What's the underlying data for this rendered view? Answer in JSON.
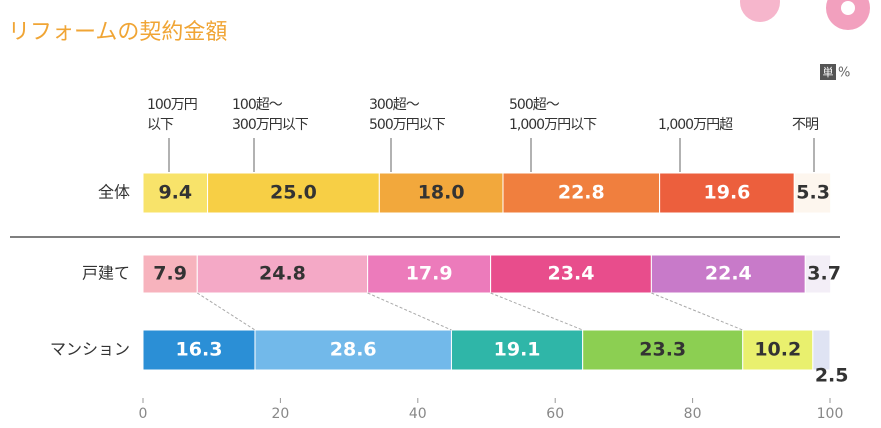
{
  "chart_data": {
    "type": "stacked-bar-horizontal",
    "title": "リフォームの契約金額",
    "unit_icon": "単",
    "unit": "%",
    "categories": [
      "全体",
      "戸建て",
      "マンション"
    ],
    "series": [
      {
        "name": "100万円\n以下",
        "values": [
          9.4,
          7.9,
          16.3
        ],
        "value_labels": [
          "9.4",
          "7.9",
          "16.3"
        ],
        "colors": [
          "#f8e36a",
          "#f7b3bd",
          "#2b8fd6"
        ]
      },
      {
        "name": "100超～\n300万円以下",
        "values": [
          25.0,
          24.8,
          28.6
        ],
        "value_labels": [
          "25.0",
          "24.8",
          "28.6"
        ],
        "colors": [
          "#f7cf45",
          "#f4a9c6",
          "#72b9ea"
        ]
      },
      {
        "name": "300超～\n500万円以下",
        "values": [
          18.0,
          17.9,
          19.1
        ],
        "value_labels": [
          "18.0",
          "17.9",
          "19.1"
        ],
        "colors": [
          "#f2a83c",
          "#ec7bbb",
          "#2fb6a8"
        ]
      },
      {
        "name": "500超～\n1,000万円以下",
        "values": [
          22.8,
          23.4,
          23.3
        ],
        "value_labels": [
          "22.8",
          "23.4",
          "23.3"
        ],
        "colors": [
          "#f07f3e",
          "#e84d8c",
          "#8ccf52"
        ]
      },
      {
        "name": "1,000万円超",
        "values": [
          19.6,
          22.4,
          10.2
        ],
        "value_labels": [
          "19.6",
          "22.4",
          "10.2"
        ],
        "colors": [
          "#ec5f3d",
          "#c87ac9",
          "#e9f06e"
        ]
      },
      {
        "name": "不明",
        "values": [
          5.3,
          3.7,
          2.5
        ],
        "value_labels": [
          "5.3",
          "3.7",
          "2.5"
        ],
        "colors": [
          "#fdf6ee",
          "#f3eef7",
          "#dfe3f3"
        ]
      }
    ],
    "xlim": [
      0,
      100
    ],
    "xticks": [
      0,
      20,
      40,
      60,
      80,
      100
    ]
  }
}
